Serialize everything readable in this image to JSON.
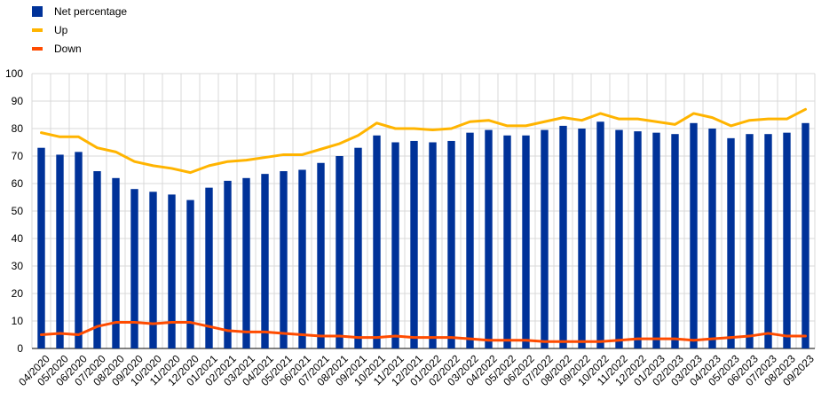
{
  "legend": {
    "net_label": "Net percentage",
    "up_label": "Up",
    "down_label": "Down"
  },
  "colors": {
    "net": "#003299",
    "up": "#FFB400",
    "down": "#FF4B00",
    "grid": "#d9d9d9"
  },
  "chart_data": {
    "type": "bar",
    "title": "",
    "xlabel": "",
    "ylabel": "",
    "ylim": [
      0,
      100
    ],
    "yticks": [
      0,
      10,
      20,
      30,
      40,
      50,
      60,
      70,
      80,
      90,
      100
    ],
    "grid": "horizontal",
    "legend_position": "top-left",
    "categories": [
      "04/2020",
      "05/2020",
      "06/2020",
      "07/2020",
      "08/2020",
      "09/2020",
      "10/2020",
      "11/2020",
      "12/2020",
      "01/2021",
      "02/2021",
      "03/2021",
      "04/2021",
      "05/2021",
      "06/2021",
      "07/2021",
      "08/2021",
      "09/2021",
      "10/2021",
      "11/2021",
      "12/2021",
      "01/2022",
      "02/2022",
      "03/2022",
      "04/2022",
      "05/2022",
      "06/2022",
      "07/2022",
      "08/2022",
      "09/2022",
      "10/2022",
      "11/2022",
      "12/2022",
      "01/2023",
      "02/2023",
      "03/2023",
      "04/2023",
      "05/2023",
      "06/2023",
      "07/2023",
      "08/2023",
      "09/2023"
    ],
    "series": [
      {
        "name": "Net percentage",
        "type": "bar",
        "values": [
          73,
          70.5,
          71.5,
          64.5,
          62,
          58,
          57,
          56,
          54,
          58.5,
          61,
          62,
          63.5,
          64.5,
          65,
          67.5,
          70,
          73,
          77.5,
          75,
          75.5,
          75,
          75.5,
          78.5,
          79.5,
          77.5,
          77.5,
          79.5,
          81,
          80,
          82.5,
          79.5,
          79,
          78.5,
          78,
          82,
          80,
          76.5,
          78,
          78,
          78.5,
          82
        ]
      },
      {
        "name": "Up",
        "type": "line",
        "values": [
          78.5,
          77,
          77,
          73,
          71.5,
          68,
          66.5,
          65.5,
          64,
          66.5,
          68,
          68.5,
          69.5,
          70.5,
          70.5,
          72.5,
          74.5,
          77.5,
          82,
          80,
          80,
          79.5,
          80,
          82.5,
          83,
          81,
          81,
          82.5,
          84,
          83,
          85.5,
          83.5,
          83.5,
          82.5,
          81.5,
          85.5,
          84,
          81,
          83,
          83.5,
          83.5,
          87
        ]
      },
      {
        "name": "Down",
        "type": "line",
        "values": [
          5,
          5.5,
          5,
          8,
          9.5,
          9.5,
          9,
          9.5,
          9.5,
          8,
          6.5,
          6,
          6,
          5.5,
          5,
          4.5,
          4.5,
          4,
          4,
          4.5,
          4,
          4,
          4,
          3.5,
          3,
          3,
          3,
          2.5,
          2.5,
          2.5,
          2.5,
          3,
          3.5,
          3.5,
          3.5,
          3,
          3.5,
          4,
          4.5,
          5.5,
          4.5,
          4.5
        ]
      }
    ]
  }
}
